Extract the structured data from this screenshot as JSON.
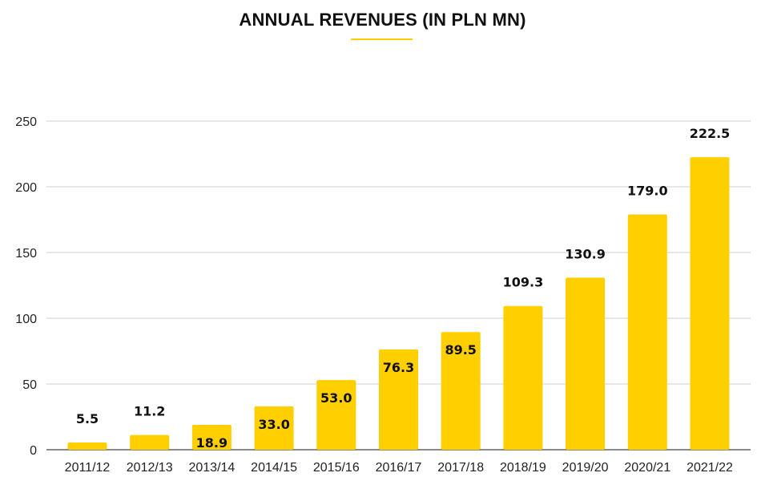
{
  "chart_data": {
    "type": "bar",
    "title": "ANNUAL REVENUES (IN PLN MN)",
    "xlabel": "",
    "ylabel": "",
    "categories": [
      "2011/12",
      "2012/13",
      "2013/14",
      "2014/15",
      "2015/16",
      "2016/17",
      "2017/18",
      "2018/19",
      "2019/20",
      "2020/21",
      "2021/22"
    ],
    "values": [
      5.5,
      11.2,
      18.9,
      33.0,
      53.0,
      76.3,
      89.5,
      109.3,
      130.9,
      179.0,
      222.5
    ],
    "data_labels": [
      "5.5",
      "11.2",
      "18.9",
      "33.0",
      "53.0",
      "76.3",
      "89.5",
      "109.3",
      "130.9",
      "179.0",
      "222.5"
    ],
    "ylim": [
      0,
      250
    ],
    "yticks": [
      "0",
      "50",
      "100",
      "150",
      "200",
      "250"
    ],
    "grid": true,
    "legend": "none"
  },
  "colors": {
    "bar": "#FFCF00",
    "accent_underline": "#FFCF00",
    "grid": "#cfcfcf",
    "axis": "#444444"
  }
}
